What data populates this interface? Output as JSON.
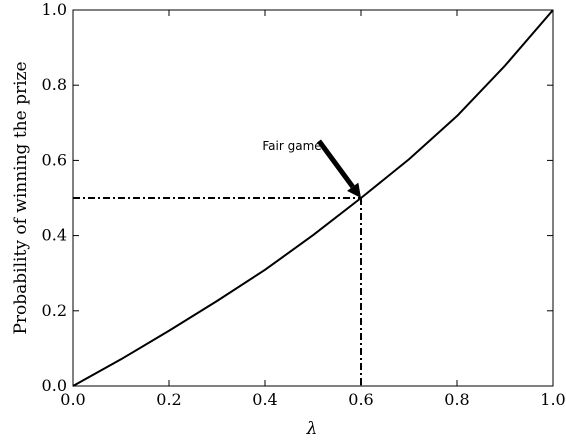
{
  "chart_data": {
    "type": "line",
    "xlabel": "λ",
    "ylabel": "Probability of winning the prize",
    "xlim": [
      0.0,
      1.0
    ],
    "ylim": [
      0.0,
      1.0
    ],
    "grid": false,
    "x_ticks": [
      "0.0",
      "0.2",
      "0.4",
      "0.6",
      "0.8",
      "1.0"
    ],
    "y_ticks": [
      "0.0",
      "0.2",
      "0.4",
      "0.6",
      "0.8",
      "1.0"
    ],
    "series": [
      {
        "x": [
          0.0,
          0.1,
          0.2,
          0.3,
          0.4,
          0.5,
          0.6,
          0.7,
          0.8,
          0.9,
          1.0
        ],
        "y": [
          0.0,
          0.071,
          0.147,
          0.226,
          0.309,
          0.401,
          0.5,
          0.603,
          0.718,
          0.852,
          1.0
        ]
      }
    ],
    "reference_lines": {
      "point": [
        0.6,
        0.5
      ],
      "style": "dash-dot"
    },
    "annotations": [
      {
        "text": "Fair game",
        "points_to": [
          0.6,
          0.5
        ]
      }
    ]
  }
}
